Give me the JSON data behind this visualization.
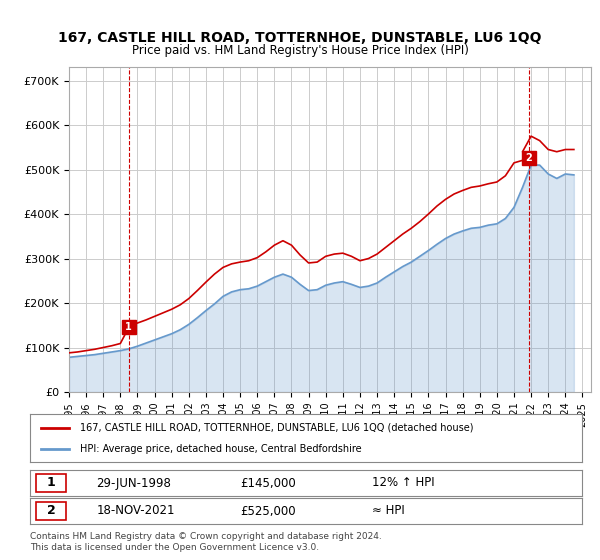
{
  "title": "167, CASTLE HILL ROAD, TOTTERNHOE, DUNSTABLE, LU6 1QQ",
  "subtitle": "Price paid vs. HM Land Registry's House Price Index (HPI)",
  "ylabel_ticks": [
    "£0",
    "£100K",
    "£200K",
    "£300K",
    "£400K",
    "£500K",
    "£600K",
    "£700K"
  ],
  "ytick_values": [
    0,
    100000,
    200000,
    300000,
    400000,
    500000,
    600000,
    700000
  ],
  "ylim": [
    0,
    730000
  ],
  "xlim_start": 1995.0,
  "xlim_end": 2025.5,
  "sale1_date": 1998.49,
  "sale1_price": 145000,
  "sale1_label": "1",
  "sale2_date": 2021.88,
  "sale2_price": 525000,
  "sale2_label": "2",
  "red_line_color": "#cc0000",
  "blue_line_color": "#6699cc",
  "marker_box_color": "#cc0000",
  "grid_color": "#cccccc",
  "background_color": "#ffffff",
  "legend_entry1": "167, CASTLE HILL ROAD, TOTTERNHOE, DUNSTABLE, LU6 1QQ (detached house)",
  "legend_entry2": "HPI: Average price, detached house, Central Bedfordshire",
  "table_row1": [
    "1",
    "29-JUN-1998",
    "£145,000",
    "12% ↑ HPI"
  ],
  "table_row2": [
    "2",
    "18-NOV-2021",
    "£525,000",
    "≈ HPI"
  ],
  "footnote": "Contains HM Land Registry data © Crown copyright and database right 2024.\nThis data is licensed under the Open Government Licence v3.0.",
  "hpi_years": [
    1995,
    1995.5,
    1996,
    1996.5,
    1997,
    1997.5,
    1998,
    1998.5,
    1999,
    1999.5,
    2000,
    2000.5,
    2001,
    2001.5,
    2002,
    2002.5,
    2003,
    2003.5,
    2004,
    2004.5,
    2005,
    2005.5,
    2006,
    2006.5,
    2007,
    2007.5,
    2008,
    2008.5,
    2009,
    2009.5,
    2010,
    2010.5,
    2011,
    2011.5,
    2012,
    2012.5,
    2013,
    2013.5,
    2014,
    2014.5,
    2015,
    2015.5,
    2016,
    2016.5,
    2017,
    2017.5,
    2018,
    2018.5,
    2019,
    2019.5,
    2020,
    2020.5,
    2021,
    2021.5,
    2022,
    2022.5,
    2023,
    2023.5,
    2024,
    2024.5
  ],
  "hpi_values": [
    78000,
    80000,
    82000,
    84000,
    87000,
    90000,
    93000,
    97000,
    103000,
    110000,
    117000,
    124000,
    131000,
    140000,
    152000,
    167000,
    183000,
    198000,
    215000,
    225000,
    230000,
    232000,
    238000,
    248000,
    258000,
    265000,
    258000,
    242000,
    228000,
    230000,
    240000,
    245000,
    248000,
    242000,
    235000,
    238000,
    245000,
    258000,
    270000,
    282000,
    292000,
    305000,
    318000,
    332000,
    345000,
    355000,
    362000,
    368000,
    370000,
    375000,
    378000,
    390000,
    415000,
    460000,
    510000,
    510000,
    490000,
    480000,
    490000,
    488000
  ],
  "red_years": [
    1995,
    1995.5,
    1996,
    1996.5,
    1997,
    1997.5,
    1998,
    1998.49,
    1998.5,
    1999,
    1999.5,
    2000,
    2000.5,
    2001,
    2001.5,
    2002,
    2002.5,
    2003,
    2003.5,
    2004,
    2004.5,
    2005,
    2005.5,
    2006,
    2006.5,
    2007,
    2007.5,
    2008,
    2008.5,
    2009,
    2009.5,
    2010,
    2010.5,
    2011,
    2011.5,
    2012,
    2012.5,
    2013,
    2013.5,
    2014,
    2014.5,
    2015,
    2015.5,
    2016,
    2016.5,
    2017,
    2017.5,
    2018,
    2018.5,
    2019,
    2019.5,
    2020,
    2020.5,
    2021,
    2021.88,
    2021.5,
    2022,
    2022.5,
    2023,
    2023.5,
    2024,
    2024.5
  ],
  "red_values": [
    88000,
    90000,
    93000,
    96000,
    100000,
    104000,
    109000,
    145000,
    148000,
    155000,
    162000,
    170000,
    178000,
    186000,
    196000,
    210000,
    228000,
    247000,
    265000,
    280000,
    288000,
    292000,
    295000,
    302000,
    315000,
    330000,
    340000,
    330000,
    308000,
    290000,
    292000,
    305000,
    310000,
    312000,
    305000,
    295000,
    300000,
    310000,
    325000,
    340000,
    355000,
    368000,
    383000,
    400000,
    418000,
    433000,
    445000,
    453000,
    460000,
    463000,
    468000,
    472000,
    486000,
    515000,
    525000,
    540000,
    575000,
    565000,
    545000,
    540000,
    545000,
    545000
  ]
}
